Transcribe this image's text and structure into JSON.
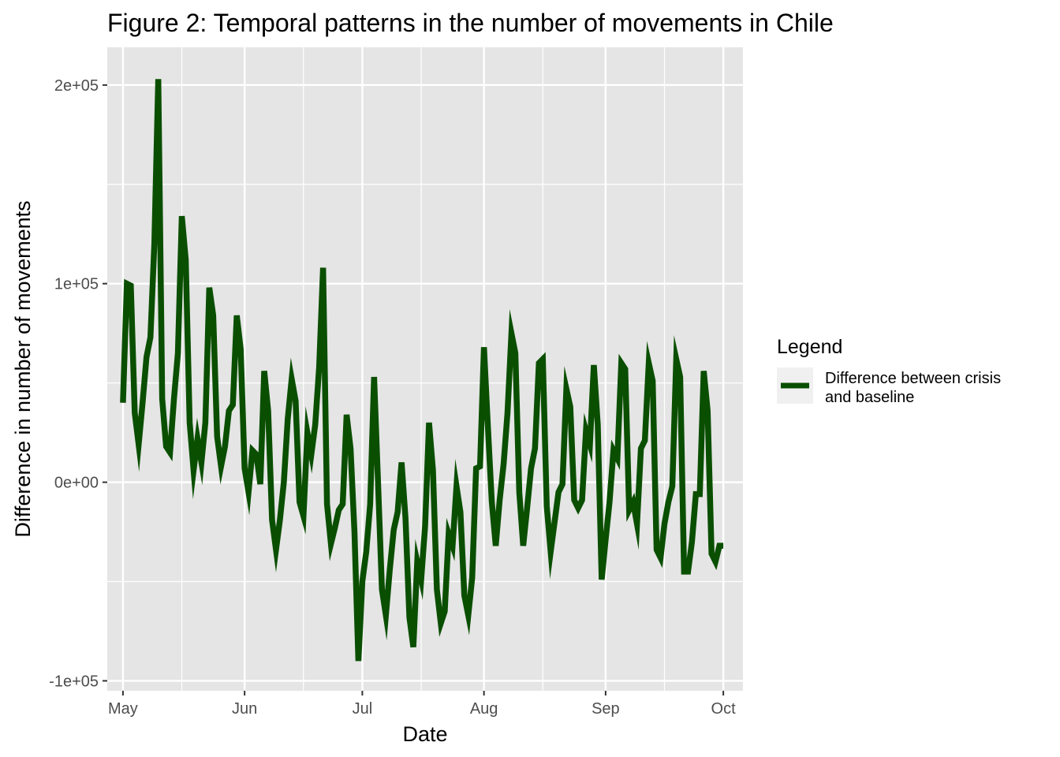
{
  "chart_data": {
    "type": "line",
    "title": "Figure 2: Temporal patterns in the number of movements in Chile",
    "xlabel": "Date",
    "ylabel": "Difference in number of movements",
    "xlim": [
      "2020-04-27",
      "2020-10-06"
    ],
    "ylim": [
      -105000,
      219000
    ],
    "x_ticks": [
      {
        "date": "2020-05-01",
        "label": "May"
      },
      {
        "date": "2020-06-01",
        "label": "Jun"
      },
      {
        "date": "2020-07-01",
        "label": "Jul"
      },
      {
        "date": "2020-08-01",
        "label": "Aug"
      },
      {
        "date": "2020-09-01",
        "label": "Sep"
      },
      {
        "date": "2020-10-01",
        "label": "Oct"
      }
    ],
    "x_minor_breaks": [
      "2020-05-16",
      "2020-06-16",
      "2020-07-16",
      "2020-08-16",
      "2020-09-16"
    ],
    "y_ticks": [
      {
        "value": -100000,
        "label": "-1e+05"
      },
      {
        "value": 0,
        "label": "0e+00"
      },
      {
        "value": 100000,
        "label": "1e+05"
      },
      {
        "value": 200000,
        "label": "2e+05"
      }
    ],
    "y_minor_breaks": [
      -50000,
      50000,
      150000
    ],
    "grid": true,
    "background": "#e5e5e5",
    "grid_color": "#ffffff",
    "legend": {
      "title": "Legend",
      "position": "right",
      "entries": [
        {
          "label_lines": [
            "Difference between crisis",
            "and baseline"
          ],
          "color": "#0a4f00"
        }
      ]
    },
    "series": [
      {
        "name": "Difference between crisis and baseline",
        "color": "#0a4f00",
        "x_start": "2020-05-01",
        "x_step_days": 1,
        "y": [
          40000,
          100000,
          99000,
          35000,
          19000,
          40000,
          63000,
          73000,
          120000,
          203000,
          42000,
          18000,
          15000,
          42000,
          65000,
          134000,
          112000,
          30000,
          6000,
          22000,
          10000,
          30000,
          98000,
          84000,
          23000,
          8000,
          18000,
          36000,
          39000,
          84000,
          67000,
          7000,
          -5000,
          16000,
          14000,
          -1000,
          56000,
          36000,
          -19000,
          -34000,
          -19000,
          0,
          32000,
          52000,
          41000,
          -10000,
          -17000,
          25000,
          14000,
          29000,
          58000,
          108000,
          -11000,
          -31000,
          -23000,
          -14000,
          -11000,
          34000,
          17000,
          -25000,
          -90000,
          -50000,
          -35000,
          -11000,
          53000,
          0,
          -54000,
          -67000,
          -44000,
          -24000,
          -15000,
          10000,
          -18000,
          -68000,
          -83000,
          -40000,
          -49000,
          -22000,
          30000,
          6000,
          -54000,
          -71000,
          -65000,
          -26000,
          -32000,
          -2000,
          -15000,
          -57000,
          -67000,
          -48000,
          7000,
          8000,
          68000,
          28000,
          -10000,
          -32000,
          -9000,
          9000,
          35000,
          75000,
          65000,
          -5000,
          -32000,
          -13000,
          7000,
          17000,
          60000,
          62000,
          -12000,
          -35000,
          -20000,
          -5000,
          -1000,
          47000,
          38000,
          -9000,
          -13000,
          -9000,
          26000,
          19000,
          59000,
          29000,
          -49000,
          -29000,
          -10000,
          16000,
          12000,
          60000,
          57000,
          -14000,
          -10000,
          -21000,
          17000,
          21000,
          60000,
          51000,
          -34000,
          -38000,
          -21000,
          -10000,
          -2000,
          62000,
          53000,
          -45000,
          -45000,
          -30000,
          -6000,
          -6000,
          56000,
          36000,
          -36000,
          -40000,
          -32000,
          -32000
        ]
      }
    ]
  }
}
